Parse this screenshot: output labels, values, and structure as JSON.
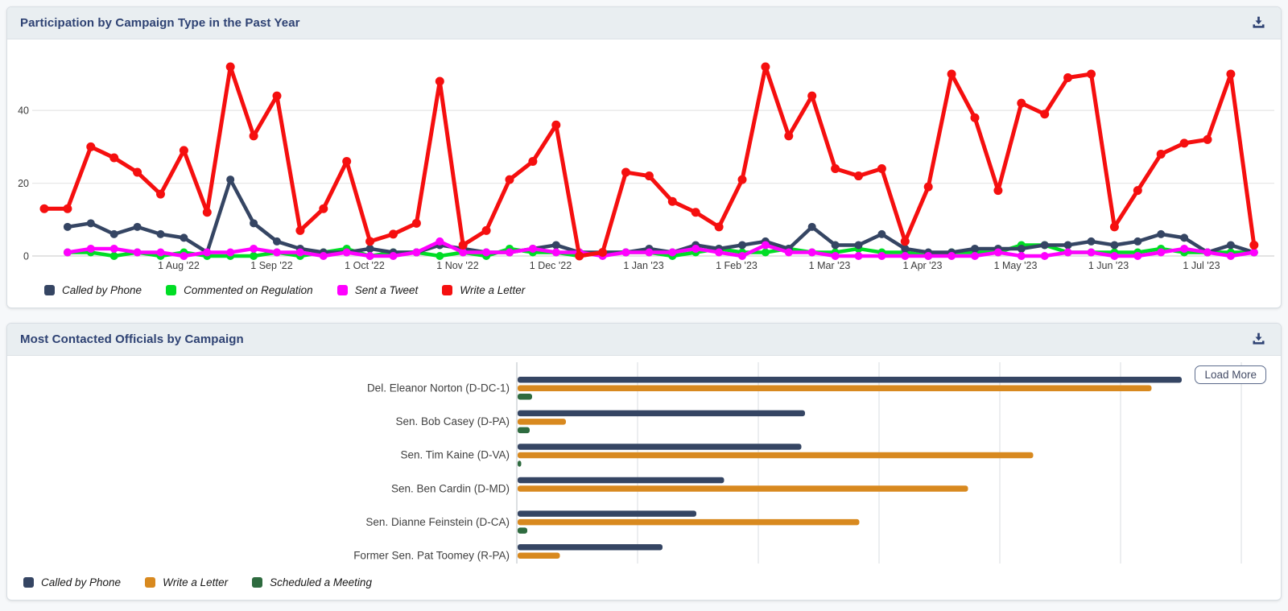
{
  "accent_navy": "#2e4273",
  "chart_data": [
    {
      "type": "line",
      "title": "Participation by Campaign Type in the Past Year",
      "x_axis": "weekly data points over the past year",
      "x_tick_labels": [
        "1 Aug '22",
        "1 Sep '22",
        "1 Oct '22",
        "1 Nov '22",
        "1 Dec '22",
        "1 Jan '23",
        "1 Feb '23",
        "1 Mar '23",
        "1 Apr '23",
        "1 May '23",
        "1 Jun '23",
        "1 Jul '23"
      ],
      "y_ticks": [
        0,
        20,
        40
      ],
      "y_max": 55,
      "grid": "horizontal only",
      "legend_position": "bottom-left",
      "series": [
        {
          "name": "Called by Phone",
          "color": "#354563",
          "values": [
            null,
            8,
            9,
            6,
            8,
            6,
            5,
            1,
            21,
            9,
            4,
            2,
            1,
            1,
            2,
            1,
            1,
            3,
            2,
            1,
            1,
            2,
            3,
            1,
            1,
            1,
            2,
            1,
            3,
            2,
            3,
            4,
            2,
            8,
            3,
            3,
            6,
            2,
            1,
            1,
            2,
            2,
            2,
            3,
            3,
            4,
            3,
            4,
            6,
            5,
            1,
            3,
            1
          ]
        },
        {
          "name": "Commented on Regulation",
          "color": "#00dd25",
          "values": [
            null,
            1,
            1,
            0,
            1,
            0,
            1,
            0,
            0,
            0,
            1,
            0,
            1,
            2,
            0,
            1,
            1,
            0,
            1,
            0,
            2,
            1,
            1,
            0,
            1,
            1,
            1,
            0,
            1,
            2,
            1,
            1,
            2,
            1,
            1,
            2,
            1,
            1,
            0,
            1,
            1,
            1,
            3,
            3,
            1,
            1,
            1,
            1,
            2,
            1,
            1,
            1,
            1
          ]
        },
        {
          "name": "Sent a Tweet",
          "color": "#ff00ff",
          "values": [
            null,
            1,
            2,
            2,
            1,
            1,
            0,
            1,
            1,
            2,
            1,
            1,
            0,
            1,
            0,
            0,
            1,
            4,
            1,
            1,
            1,
            2,
            1,
            1,
            0,
            1,
            1,
            1,
            2,
            1,
            0,
            3,
            1,
            1,
            0,
            0,
            0,
            0,
            0,
            0,
            0,
            1,
            0,
            0,
            1,
            1,
            0,
            0,
            1,
            2,
            1,
            0,
            1
          ]
        },
        {
          "name": "Write a Letter",
          "color": "#f50f0f",
          "values": [
            13,
            13,
            30,
            27,
            23,
            17,
            29,
            12,
            52,
            33,
            44,
            7,
            13,
            26,
            4,
            6,
            9,
            48,
            3,
            7,
            21,
            26,
            36,
            0,
            1,
            23,
            22,
            15,
            12,
            8,
            21,
            52,
            33,
            44,
            24,
            22,
            24,
            4,
            19,
            50,
            38,
            18,
            42,
            39,
            49,
            50,
            8,
            18,
            28,
            31,
            32,
            50,
            3
          ]
        }
      ]
    },
    {
      "type": "bar",
      "orientation": "horizontal",
      "title": "Most Contacted Officials by Campaign",
      "load_more_label": "Load More",
      "value_unit": "axis gridline units (numeric axis labels not visible in view)",
      "grid": "vertical only",
      "legend_position": "bottom-left",
      "categories": [
        "Del. Eleanor Norton (D-DC-1)",
        "Sen. Bob Casey (D-PA)",
        "Sen. Tim Kaine (D-VA)",
        "Sen. Ben Cardin (D-MD)",
        "Sen. Dianne Feinstein (D-CA)",
        "Former Sen. Pat Toomey (R-PA)"
      ],
      "series": [
        {
          "name": "Called by Phone",
          "color": "#354563",
          "values": [
            5.5,
            2.38,
            2.35,
            1.71,
            1.48,
            1.2
          ]
        },
        {
          "name": "Write a Letter",
          "color": "#d8891f",
          "values": [
            5.25,
            0.4,
            4.27,
            3.73,
            2.83,
            0.35
          ]
        },
        {
          "name": "Scheduled a Meeting",
          "color": "#2e6b3f",
          "values": [
            0.12,
            0.1,
            0.03,
            0,
            0.08,
            0
          ]
        }
      ]
    }
  ]
}
